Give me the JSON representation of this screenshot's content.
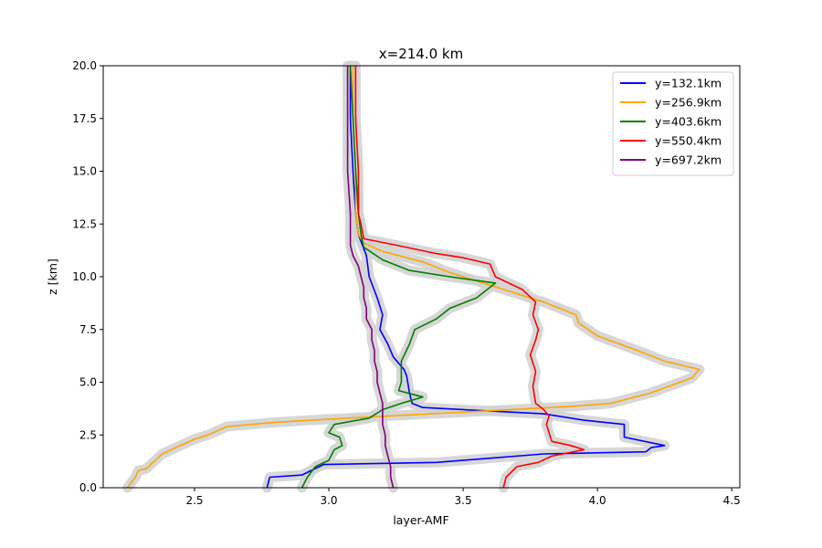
{
  "chart_data": {
    "type": "line",
    "title": "x=214.0 km",
    "xlabel": "layer-AMF",
    "ylabel": "z [km]",
    "xlim": [
      2.16,
      4.53
    ],
    "ylim": [
      0,
      20
    ],
    "xticks": [
      "2.5",
      "3.0",
      "3.5",
      "4.0",
      "4.5"
    ],
    "yticks": [
      "0.0",
      "2.5",
      "5.0",
      "7.5",
      "10.0",
      "12.5",
      "15.0",
      "17.5",
      "20.0"
    ],
    "grid": false,
    "legend": "top-right",
    "band_color": "#d3d3d3",
    "series": [
      {
        "name": "y=132.1km",
        "color": "#0000ff",
        "points": [
          [
            2.77,
            0.0
          ],
          [
            2.78,
            0.5
          ],
          [
            2.9,
            0.6
          ],
          [
            2.98,
            1.1
          ],
          [
            3.4,
            1.2
          ],
          [
            3.6,
            1.4
          ],
          [
            3.8,
            1.6
          ],
          [
            4.18,
            1.7
          ],
          [
            4.2,
            1.9
          ],
          [
            4.25,
            2.0
          ],
          [
            4.1,
            2.4
          ],
          [
            4.1,
            3.0
          ],
          [
            3.95,
            3.2
          ],
          [
            3.8,
            3.5
          ],
          [
            3.35,
            3.8
          ],
          [
            3.31,
            4.0
          ],
          [
            3.3,
            4.5
          ],
          [
            3.29,
            5.3
          ],
          [
            3.28,
            5.6
          ],
          [
            3.24,
            6.2
          ],
          [
            3.22,
            6.8
          ],
          [
            3.19,
            7.5
          ],
          [
            3.2,
            8.2
          ],
          [
            3.18,
            9.0
          ],
          [
            3.15,
            10.0
          ],
          [
            3.14,
            11.0
          ],
          [
            3.11,
            12.0
          ],
          [
            3.1,
            13.0
          ],
          [
            3.09,
            15.0
          ],
          [
            3.08,
            17.5
          ],
          [
            3.08,
            20.0
          ]
        ]
      },
      {
        "name": "y=256.9km",
        "color": "#ffa500",
        "points": [
          [
            2.25,
            0.0
          ],
          [
            2.28,
            0.5
          ],
          [
            2.29,
            0.8
          ],
          [
            2.32,
            0.9
          ],
          [
            2.38,
            1.6
          ],
          [
            2.43,
            1.9
          ],
          [
            2.5,
            2.3
          ],
          [
            2.55,
            2.5
          ],
          [
            2.62,
            2.9
          ],
          [
            2.8,
            3.1
          ],
          [
            3.0,
            3.25
          ],
          [
            3.3,
            3.45
          ],
          [
            3.6,
            3.65
          ],
          [
            3.9,
            3.85
          ],
          [
            4.05,
            4.0
          ],
          [
            4.2,
            4.5
          ],
          [
            4.35,
            5.2
          ],
          [
            4.38,
            5.6
          ],
          [
            4.25,
            6.0
          ],
          [
            4.15,
            6.5
          ],
          [
            4.0,
            7.2
          ],
          [
            3.93,
            7.8
          ],
          [
            3.92,
            8.2
          ],
          [
            3.8,
            8.8
          ],
          [
            3.7,
            9.2
          ],
          [
            3.6,
            9.6
          ],
          [
            3.45,
            10.2
          ],
          [
            3.35,
            10.7
          ],
          [
            3.2,
            11.2
          ],
          [
            3.13,
            11.6
          ],
          [
            3.11,
            12.0
          ],
          [
            3.1,
            13.0
          ],
          [
            3.1,
            15.0
          ],
          [
            3.09,
            17.5
          ],
          [
            3.09,
            20.0
          ]
        ]
      },
      {
        "name": "y=403.6km",
        "color": "#008000",
        "points": [
          [
            2.9,
            0.0
          ],
          [
            2.92,
            0.5
          ],
          [
            2.95,
            1.0
          ],
          [
            3.0,
            1.3
          ],
          [
            3.02,
            1.8
          ],
          [
            3.05,
            2.0
          ],
          [
            3.04,
            2.4
          ],
          [
            3.0,
            2.6
          ],
          [
            3.02,
            3.0
          ],
          [
            3.15,
            3.3
          ],
          [
            3.2,
            3.7
          ],
          [
            3.27,
            4.0
          ],
          [
            3.35,
            4.3
          ],
          [
            3.26,
            4.6
          ],
          [
            3.27,
            5.0
          ],
          [
            3.27,
            6.0
          ],
          [
            3.3,
            6.8
          ],
          [
            3.32,
            7.5
          ],
          [
            3.4,
            8.0
          ],
          [
            3.45,
            8.5
          ],
          [
            3.55,
            9.0
          ],
          [
            3.62,
            9.7
          ],
          [
            3.45,
            10.0
          ],
          [
            3.3,
            10.3
          ],
          [
            3.2,
            10.8
          ],
          [
            3.13,
            11.4
          ],
          [
            3.12,
            12.0
          ],
          [
            3.11,
            13.0
          ],
          [
            3.1,
            15.0
          ],
          [
            3.09,
            17.5
          ],
          [
            3.08,
            20.0
          ]
        ]
      },
      {
        "name": "y=550.4km",
        "color": "#ff0000",
        "points": [
          [
            3.65,
            0.0
          ],
          [
            3.66,
            0.5
          ],
          [
            3.7,
            1.0
          ],
          [
            3.78,
            1.2
          ],
          [
            3.83,
            1.5
          ],
          [
            3.95,
            1.8
          ],
          [
            3.9,
            2.0
          ],
          [
            3.83,
            2.2
          ],
          [
            3.82,
            2.6
          ],
          [
            3.81,
            3.0
          ],
          [
            3.82,
            3.4
          ],
          [
            3.8,
            3.7
          ],
          [
            3.77,
            4.0
          ],
          [
            3.76,
            4.8
          ],
          [
            3.77,
            5.5
          ],
          [
            3.75,
            6.3
          ],
          [
            3.77,
            7.0
          ],
          [
            3.78,
            7.5
          ],
          [
            3.76,
            8.2
          ],
          [
            3.77,
            8.8
          ],
          [
            3.72,
            9.4
          ],
          [
            3.62,
            10.0
          ],
          [
            3.6,
            10.6
          ],
          [
            3.5,
            10.9
          ],
          [
            3.4,
            11.1
          ],
          [
            3.25,
            11.5
          ],
          [
            3.13,
            11.8
          ],
          [
            3.12,
            12.5
          ],
          [
            3.11,
            13.0
          ],
          [
            3.11,
            15.0
          ],
          [
            3.1,
            17.5
          ],
          [
            3.1,
            20.0
          ]
        ]
      },
      {
        "name": "y=697.2km",
        "color": "#800080",
        "points": [
          [
            3.24,
            0.0
          ],
          [
            3.23,
            0.5
          ],
          [
            3.23,
            1.0
          ],
          [
            3.22,
            1.5
          ],
          [
            3.21,
            2.0
          ],
          [
            3.21,
            2.5
          ],
          [
            3.2,
            3.0
          ],
          [
            3.2,
            3.5
          ],
          [
            3.2,
            4.0
          ],
          [
            3.19,
            4.5
          ],
          [
            3.18,
            5.0
          ],
          [
            3.18,
            5.5
          ],
          [
            3.17,
            6.0
          ],
          [
            3.17,
            6.5
          ],
          [
            3.16,
            7.0
          ],
          [
            3.16,
            7.5
          ],
          [
            3.14,
            8.0
          ],
          [
            3.14,
            8.5
          ],
          [
            3.13,
            9.0
          ],
          [
            3.13,
            9.5
          ],
          [
            3.12,
            10.0
          ],
          [
            3.11,
            10.5
          ],
          [
            3.09,
            11.0
          ],
          [
            3.08,
            11.5
          ],
          [
            3.08,
            12.0
          ],
          [
            3.08,
            13.0
          ],
          [
            3.07,
            15.0
          ],
          [
            3.07,
            17.5
          ],
          [
            3.07,
            20.0
          ]
        ]
      }
    ]
  }
}
